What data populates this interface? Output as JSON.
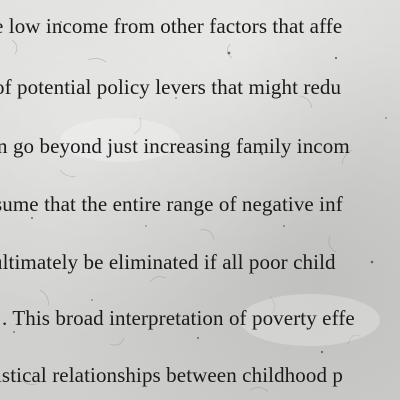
{
  "document": {
    "lines": [
      "e low income from other factors that affe",
      "of potential policy levers that might redu",
      "n go beyond just increasing family incom",
      "sume that the entire range of negative inf",
      "ultimately be eliminated if all poor child",
      ". This broad interpretation of poverty effe",
      "istical relationships between childhood p"
    ]
  }
}
